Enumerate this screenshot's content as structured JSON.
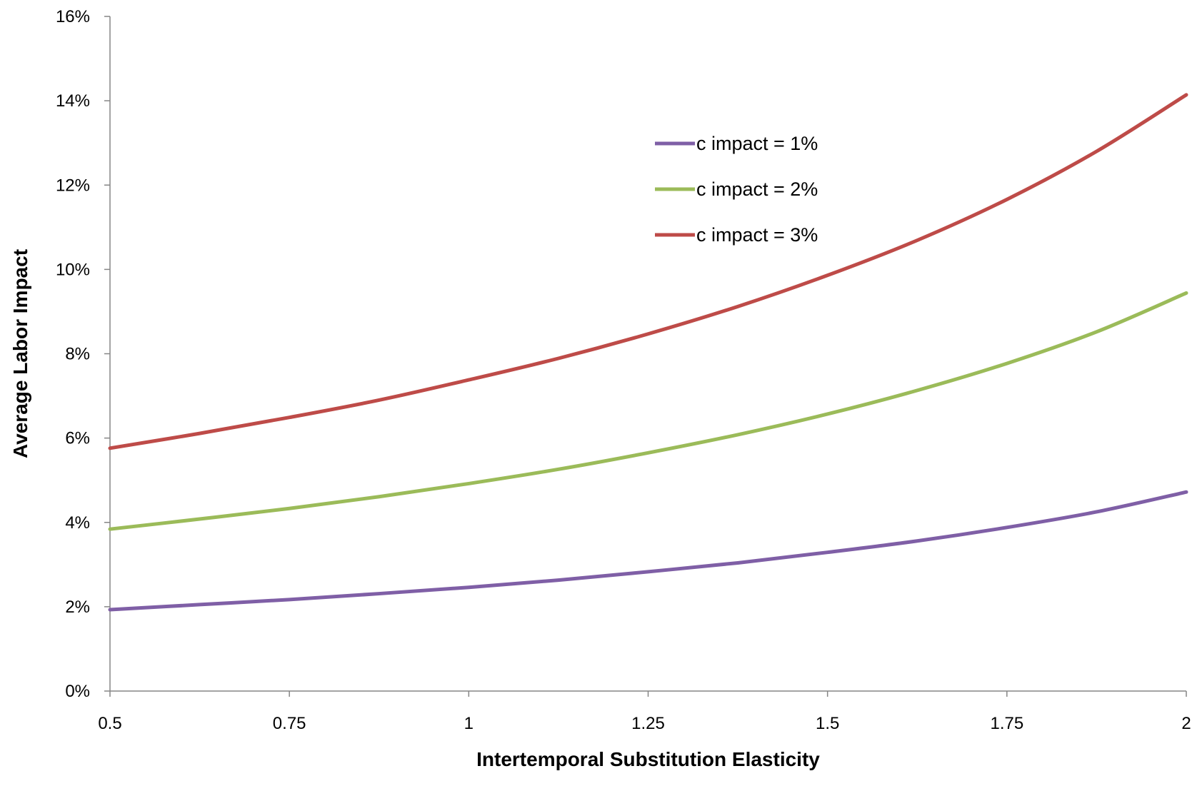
{
  "chart_data": {
    "type": "line",
    "title": "",
    "xlabel": "Intertemporal Substitution Elasticity",
    "ylabel": "Average Labor Impact",
    "xlim": [
      0.5,
      2
    ],
    "ylim": [
      0,
      0.16
    ],
    "x_ticks": [
      0.5,
      0.75,
      1,
      1.25,
      1.5,
      1.75,
      2
    ],
    "x_tick_labels": [
      "0.5",
      "0.75",
      "1",
      "1.25",
      "1.5",
      "1.75",
      "2"
    ],
    "y_ticks": [
      0,
      0.02,
      0.04,
      0.06,
      0.08,
      0.1,
      0.12,
      0.14,
      0.16
    ],
    "y_tick_labels": [
      "0%",
      "2%",
      "4%",
      "6%",
      "8%",
      "10%",
      "12%",
      "14%",
      "16%"
    ],
    "grid": false,
    "legend_position": "upper-center-right",
    "x": [
      0.5,
      0.625,
      0.75,
      0.875,
      1.0,
      1.125,
      1.25,
      1.375,
      1.5,
      1.625,
      1.75,
      1.875,
      2.0
    ],
    "series": [
      {
        "name": "c impact = 1%",
        "color": "#7F5FA6",
        "values": [
          0.0193,
          0.0205,
          0.0217,
          0.0231,
          0.0246,
          0.0263,
          0.0283,
          0.0304,
          0.0329,
          0.0356,
          0.0388,
          0.0425,
          0.0472
        ]
      },
      {
        "name": "c impact = 2%",
        "color": "#9BBB59",
        "values": [
          0.0384,
          0.0408,
          0.0433,
          0.0461,
          0.0492,
          0.0526,
          0.0565,
          0.0608,
          0.0657,
          0.0713,
          0.0777,
          0.0852,
          0.0944
        ]
      },
      {
        "name": "c impact = 3%",
        "color": "#BE4B48",
        "values": [
          0.0576,
          0.0611,
          0.0649,
          0.069,
          0.0738,
          0.0789,
          0.0847,
          0.0912,
          0.0986,
          0.1069,
          0.1166,
          0.128,
          0.1414
        ]
      }
    ]
  }
}
